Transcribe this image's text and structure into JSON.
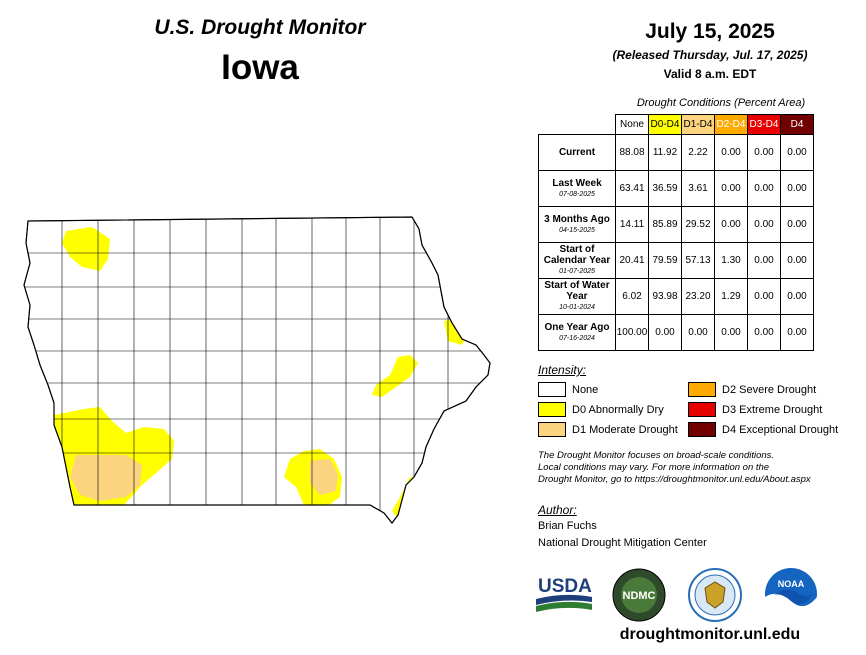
{
  "header": {
    "title": "U.S. Drought Monitor",
    "state": "Iowa",
    "date": "July 15, 2025",
    "released": "(Released Thursday, Jul. 17, 2025)",
    "valid": "Valid 8 a.m. EDT"
  },
  "table": {
    "caption": "Drought Conditions (Percent Area)",
    "columns": [
      {
        "label": "None",
        "color": "#ffffff",
        "text_color": "#000000"
      },
      {
        "label": "D0-D4",
        "color": "#ffff00",
        "text_color": "#000000"
      },
      {
        "label": "D1-D4",
        "color": "#fcd37f",
        "text_color": "#000000"
      },
      {
        "label": "D2-D4",
        "color": "#ffaa00",
        "text_color": "#ffffff"
      },
      {
        "label": "D3-D4",
        "color": "#e60000",
        "text_color": "#ffffff"
      },
      {
        "label": "D4",
        "color": "#730000",
        "text_color": "#ffffff"
      }
    ],
    "rows": [
      {
        "label": "Current",
        "sub": "",
        "values": [
          "88.08",
          "11.92",
          "2.22",
          "0.00",
          "0.00",
          "0.00"
        ]
      },
      {
        "label": "Last Week",
        "sub": "07-08-2025",
        "values": [
          "63.41",
          "36.59",
          "3.61",
          "0.00",
          "0.00",
          "0.00"
        ]
      },
      {
        "label": "3 Months Ago",
        "sub": "04-15-2025",
        "values": [
          "14.11",
          "85.89",
          "29.52",
          "0.00",
          "0.00",
          "0.00"
        ]
      },
      {
        "label": "Start of Calendar Year",
        "sub": "01-07-2025",
        "values": [
          "20.41",
          "79.59",
          "57.13",
          "1.30",
          "0.00",
          "0.00"
        ]
      },
      {
        "label": "Start of Water Year",
        "sub": "10-01-2024",
        "values": [
          "6.02",
          "93.98",
          "23.20",
          "1.29",
          "0.00",
          "0.00"
        ]
      },
      {
        "label": "One Year Ago",
        "sub": "07-16-2024",
        "values": [
          "100.00",
          "0.00",
          "0.00",
          "0.00",
          "0.00",
          "0.00"
        ]
      }
    ]
  },
  "legend": {
    "title": "Intensity:",
    "items": [
      {
        "label": "None",
        "color": "#ffffff"
      },
      {
        "label": "D0 Abnormally Dry",
        "color": "#ffff00"
      },
      {
        "label": "D1 Moderate Drought",
        "color": "#fcd37f"
      },
      {
        "label": "D2 Severe Drought",
        "color": "#ffaa00"
      },
      {
        "label": "D3 Extreme Drought",
        "color": "#e60000"
      },
      {
        "label": "D4 Exceptional Drought",
        "color": "#730000"
      }
    ]
  },
  "note": {
    "line1": "The Drought Monitor focuses on broad-scale conditions.",
    "line2": "Local conditions may vary. For more information on the",
    "line3": "Drought Monitor, go to https://droughtmonitor.unl.edu/About.aspx"
  },
  "author": {
    "title": "Author:",
    "name": "Brian Fuchs",
    "org": "National Drought Mitigation Center"
  },
  "logos": {
    "usda": "USDA",
    "ndmc": "NDMC",
    "noaa": "NOAA"
  },
  "footer": {
    "url": "droughtmonitor.unl.edu"
  }
}
